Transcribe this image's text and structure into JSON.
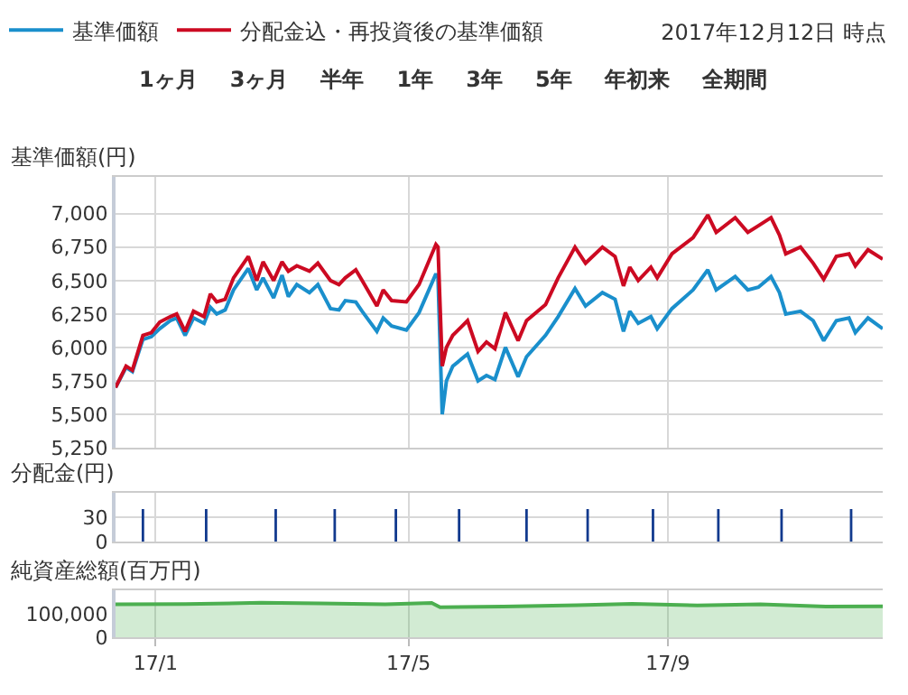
{
  "chart_data": [
    {
      "type": "line",
      "ylabel": "基準価額(円)",
      "legend": "top",
      "grid": true,
      "tick_labels": "y",
      "annotations": [
        "2017年12月12日 時点",
        "1ヶ月",
        "3ヶ月",
        "半年",
        "1年",
        "3年",
        "5年",
        "年初来",
        "全期間"
      ],
      "x": [
        "2016-12-13",
        "2016-12-18",
        "2016-12-21",
        "2016-12-26",
        "2016-12-30",
        "2017-01-03",
        "2017-01-08",
        "2017-01-11",
        "2017-01-15",
        "2017-01-19",
        "2017-01-24",
        "2017-01-27",
        "2017-01-30",
        "2017-02-03",
        "2017-02-07",
        "2017-02-14",
        "2017-02-18",
        "2017-02-21",
        "2017-02-26",
        "2017-03-02",
        "2017-03-05",
        "2017-03-09",
        "2017-03-15",
        "2017-03-19",
        "2017-03-25",
        "2017-03-29",
        "2017-04-01",
        "2017-04-06",
        "2017-04-09",
        "2017-04-16",
        "2017-04-19",
        "2017-04-23",
        "2017-04-30",
        "2017-05-06",
        "2017-05-14",
        "2017-05-15",
        "2017-05-17",
        "2017-05-19",
        "2017-05-22",
        "2017-05-29",
        "2017-06-03",
        "2017-06-07",
        "2017-06-11",
        "2017-06-16",
        "2017-06-22",
        "2017-06-26",
        "2017-07-05",
        "2017-07-11",
        "2017-07-19",
        "2017-07-24",
        "2017-08-01",
        "2017-08-07",
        "2017-08-11",
        "2017-08-14",
        "2017-08-18",
        "2017-08-24",
        "2017-08-27",
        "2017-09-03",
        "2017-09-13",
        "2017-09-20",
        "2017-09-24",
        "2017-10-03",
        "2017-10-09",
        "2017-10-14",
        "2017-10-20",
        "2017-10-24",
        "2017-10-27",
        "2017-11-03",
        "2017-11-09",
        "2017-11-14",
        "2017-11-20",
        "2017-11-26",
        "2017-11-29",
        "2017-12-05",
        "2017-12-12"
      ],
      "xlim": [
        "2016-12-13",
        "2017-12-12"
      ],
      "xticks": [
        {
          "value": "2017-01-01",
          "label": null
        },
        {
          "value": "2017-05-01",
          "label": null
        },
        {
          "value": "2017-09-01",
          "label": null
        }
      ],
      "ylim": [
        5250,
        7275
      ],
      "yticks": [
        {
          "value": 5250,
          "label": "5,250"
        },
        {
          "value": 5500,
          "label": "5,500"
        },
        {
          "value": 5750,
          "label": "5,750"
        },
        {
          "value": 6000,
          "label": "6,000"
        },
        {
          "value": 6250,
          "label": "6,250"
        },
        {
          "value": 6500,
          "label": "6,500"
        },
        {
          "value": 6750,
          "label": "6,750"
        },
        {
          "value": 7000,
          "label": "7,000"
        }
      ],
      "series": [
        {
          "name": "基準価額",
          "color": "#1a8fcc",
          "values": [
            5700,
            5850,
            5820,
            6060,
            6080,
            6140,
            6200,
            6220,
            6090,
            6220,
            6180,
            6300,
            6250,
            6280,
            6430,
            6590,
            6430,
            6520,
            6370,
            6540,
            6380,
            6470,
            6410,
            6470,
            6290,
            6280,
            6350,
            6340,
            6270,
            6120,
            6220,
            6160,
            6130,
            6260,
            6550,
            6520,
            5500,
            5750,
            5860,
            5950,
            5750,
            5790,
            5760,
            6000,
            5780,
            5930,
            6090,
            6230,
            6440,
            6310,
            6410,
            6360,
            6120,
            6270,
            6180,
            6230,
            6140,
            6290,
            6430,
            6580,
            6430,
            6530,
            6430,
            6450,
            6530,
            6410,
            6250,
            6270,
            6200,
            6050,
            6200,
            6220,
            6110,
            6220,
            6140
          ]
        },
        {
          "name": "分配金込・再投資後の基準価額",
          "color": "#cc0a22",
          "values": [
            5700,
            5860,
            5830,
            6090,
            6110,
            6190,
            6230,
            6250,
            6120,
            6270,
            6230,
            6400,
            6340,
            6360,
            6520,
            6680,
            6500,
            6640,
            6500,
            6640,
            6570,
            6610,
            6570,
            6630,
            6500,
            6470,
            6520,
            6580,
            6500,
            6310,
            6430,
            6350,
            6340,
            6470,
            6770,
            6750,
            5860,
            6000,
            6090,
            6200,
            5970,
            6040,
            5990,
            6260,
            6050,
            6200,
            6320,
            6520,
            6750,
            6630,
            6750,
            6680,
            6460,
            6600,
            6500,
            6600,
            6520,
            6700,
            6820,
            6990,
            6860,
            6970,
            6860,
            6910,
            6970,
            6840,
            6700,
            6750,
            6630,
            6510,
            6680,
            6700,
            6610,
            6730,
            6660
          ]
        }
      ]
    },
    {
      "type": "bar",
      "ylabel": "分配金(円)",
      "grid": true,
      "tick_labels": "y",
      "x": [
        "2016-12-26",
        "2017-01-25",
        "2017-02-27",
        "2017-03-27",
        "2017-04-25",
        "2017-05-25",
        "2017-06-26",
        "2017-07-25",
        "2017-08-25",
        "2017-09-25",
        "2017-10-25",
        "2017-11-27"
      ],
      "xlim": [
        "2016-12-13",
        "2017-12-12"
      ],
      "xticks": [
        {
          "value": "2017-01-01",
          "label": null
        },
        {
          "value": "2017-05-01",
          "label": null
        },
        {
          "value": "2017-09-01",
          "label": null
        }
      ],
      "ylim": [
        0,
        60
      ],
      "yticks": [
        {
          "value": 0,
          "label": "0"
        },
        30
      ],
      "series": [
        {
          "color": "#123a8e",
          "values": [
            40,
            40,
            40,
            40,
            40,
            40,
            40,
            40,
            40,
            40,
            40,
            40
          ]
        }
      ]
    },
    {
      "type": "area",
      "ylabel": "純資産総額(百万円)",
      "grid": "x",
      "x": [
        "2016-12-13",
        "2017-01-15",
        "2017-02-20",
        "2017-03-20",
        "2017-04-20",
        "2017-05-12",
        "2017-05-16",
        "2017-06-15",
        "2017-07-20",
        "2017-08-15",
        "2017-09-15",
        "2017-10-15",
        "2017-11-15",
        "2017-12-12"
      ],
      "xlim": [
        "2016-12-13",
        "2017-12-12"
      ],
      "xticks": [
        {
          "value": "2017-01-01",
          "label": "17/1"
        },
        {
          "value": "2017-05-01",
          "label": "17/5"
        },
        {
          "value": "2017-09-01",
          "label": "17/9"
        }
      ],
      "ylim": [
        0,
        200000
      ],
      "yticks": [
        {
          "value": 0,
          "label": "0"
        },
        {
          "value": 100000,
          "label": "100,000"
        }
      ],
      "series": [
        {
          "color": "#4caf50",
          "values": [
            140000,
            141000,
            147000,
            144000,
            140000,
            146000,
            128000,
            131000,
            137000,
            142000,
            136000,
            140000,
            131000,
            132000
          ]
        }
      ]
    }
  ]
}
